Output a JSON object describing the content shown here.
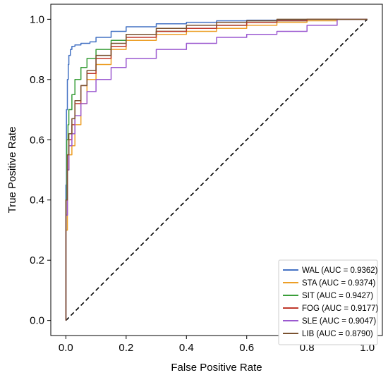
{
  "chart_data": {
    "type": "line",
    "title": "",
    "xlabel": "False Positive Rate",
    "ylabel": "True Positive Rate",
    "xlim": [
      -0.05,
      1.05
    ],
    "ylim": [
      -0.05,
      1.05
    ],
    "xticks": [
      "0.0",
      "0.2",
      "0.4",
      "0.6",
      "0.8",
      "1.0"
    ],
    "yticks": [
      "0.0",
      "0.2",
      "0.4",
      "0.6",
      "0.8",
      "1.0"
    ],
    "grid": false,
    "legend_position": "lower-right",
    "reference_line": {
      "x": [
        0,
        1
      ],
      "y": [
        0,
        1
      ],
      "style": "dashed",
      "color": "#000000"
    },
    "series": [
      {
        "name": "WAL (AUC = 0.9362)",
        "color": "#4472c4",
        "x": [
          0,
          0.002,
          0.005,
          0.008,
          0.01,
          0.015,
          0.02,
          0.03,
          0.05,
          0.08,
          0.1,
          0.15,
          0.2,
          0.3,
          0.4,
          0.5,
          0.6,
          0.7,
          0.8,
          0.9,
          1.0
        ],
        "y": [
          0,
          0.45,
          0.7,
          0.8,
          0.85,
          0.88,
          0.9,
          0.91,
          0.915,
          0.92,
          0.925,
          0.94,
          0.96,
          0.975,
          0.985,
          0.99,
          0.995,
          0.997,
          0.998,
          1.0,
          1.0
        ]
      },
      {
        "name": "STA  (AUC = 0.9374)",
        "color": "#ed9f27",
        "x": [
          0,
          0.005,
          0.01,
          0.02,
          0.03,
          0.05,
          0.07,
          0.1,
          0.15,
          0.2,
          0.3,
          0.4,
          0.5,
          0.6,
          0.7,
          0.8,
          0.9,
          1.0
        ],
        "y": [
          0,
          0.3,
          0.5,
          0.55,
          0.58,
          0.65,
          0.72,
          0.8,
          0.85,
          0.9,
          0.93,
          0.95,
          0.96,
          0.97,
          0.98,
          0.99,
          0.995,
          1.0
        ]
      },
      {
        "name": "SIT   (AUC = 0.9427)",
        "color": "#3a9e3a",
        "x": [
          0,
          0.003,
          0.007,
          0.01,
          0.02,
          0.03,
          0.05,
          0.07,
          0.1,
          0.15,
          0.2,
          0.3,
          0.4,
          0.5,
          0.6,
          0.7,
          0.8,
          0.9,
          1.0
        ],
        "y": [
          0,
          0.4,
          0.6,
          0.65,
          0.7,
          0.75,
          0.8,
          0.84,
          0.87,
          0.9,
          0.93,
          0.95,
          0.96,
          0.97,
          0.98,
          0.99,
          0.995,
          1.0,
          1.0
        ]
      },
      {
        "name": "FOG  (AUC = 0.9177)",
        "color": "#c0392b",
        "x": [
          0,
          0.005,
          0.01,
          0.02,
          0.03,
          0.05,
          0.07,
          0.1,
          0.15,
          0.2,
          0.3,
          0.4,
          0.5,
          0.6,
          0.7,
          0.8,
          0.9,
          1.0
        ],
        "y": [
          0,
          0.35,
          0.5,
          0.6,
          0.65,
          0.72,
          0.78,
          0.82,
          0.87,
          0.91,
          0.94,
          0.96,
          0.97,
          0.98,
          0.99,
          0.995,
          1.0,
          1.0
        ]
      },
      {
        "name": "SLE   (AUC = 0.9047)",
        "color": "#9b59d0",
        "x": [
          0,
          0.005,
          0.01,
          0.02,
          0.03,
          0.05,
          0.07,
          0.1,
          0.15,
          0.2,
          0.3,
          0.4,
          0.5,
          0.6,
          0.7,
          0.8,
          0.9,
          1.0
        ],
        "y": [
          0,
          0.35,
          0.5,
          0.58,
          0.62,
          0.68,
          0.72,
          0.76,
          0.8,
          0.84,
          0.87,
          0.9,
          0.92,
          0.94,
          0.95,
          0.96,
          0.98,
          1.0
        ]
      },
      {
        "name": "LIB   (AUC = 0.8790)",
        "color": "#7a5230",
        "x": [
          0,
          0.005,
          0.01,
          0.02,
          0.03,
          0.05,
          0.07,
          0.1,
          0.15,
          0.2,
          0.3,
          0.4,
          0.5,
          0.6,
          0.7,
          0.8,
          0.9,
          1.0
        ],
        "y": [
          0,
          0.4,
          0.55,
          0.62,
          0.67,
          0.73,
          0.78,
          0.83,
          0.88,
          0.92,
          0.95,
          0.97,
          0.98,
          0.99,
          0.995,
          1.0,
          1.0,
          1.0
        ]
      }
    ]
  }
}
